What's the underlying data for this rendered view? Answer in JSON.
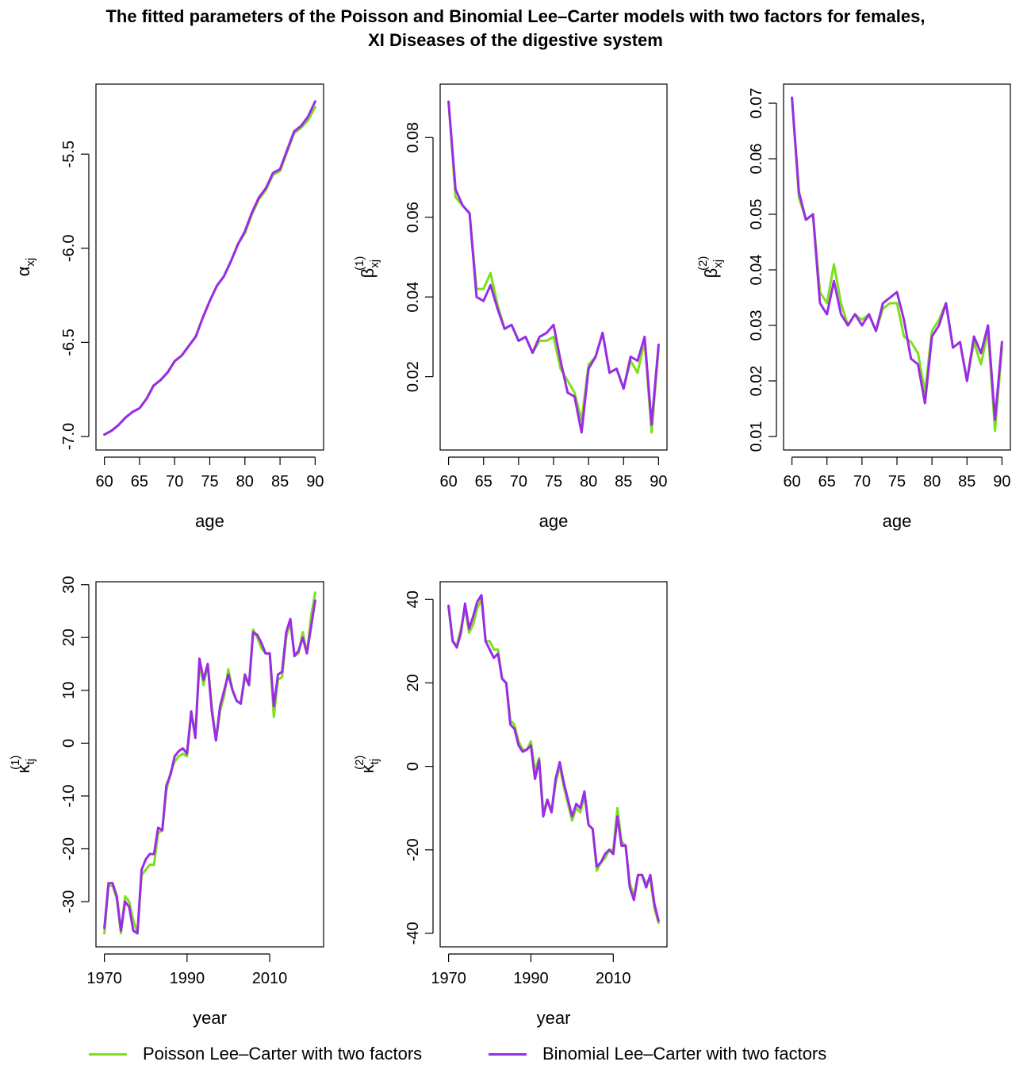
{
  "title_line1": "The fitted parameters of the Poisson and Binomial Lee–Carter models with two factors for females,",
  "title_line2": "XI Diseases of the digestive system",
  "colors": {
    "poisson": "#7CE01A",
    "binomial": "#9B2BE8"
  },
  "legend": [
    {
      "key": "poisson",
      "label": "Poisson Lee–Carter with two factors"
    },
    {
      "key": "binomial",
      "label": "Binomial Lee–Carter with two factors"
    }
  ],
  "chart_data": [
    {
      "id": "alpha",
      "type": "line",
      "xlabel": "age",
      "ylabel": "α_xj",
      "xlim": [
        60,
        90
      ],
      "ylim": [
        -7.0,
        -5.2
      ],
      "xticks": [
        60,
        65,
        70,
        75,
        80,
        85,
        90
      ],
      "yticks": [
        -7.0,
        -6.5,
        -6.0,
        -5.5
      ],
      "ytick_labels": [
        "-7.0",
        "-6.5",
        "-6.0",
        "-5.5"
      ],
      "x": [
        60,
        61,
        62,
        63,
        64,
        65,
        66,
        67,
        68,
        69,
        70,
        71,
        72,
        73,
        74,
        75,
        76,
        77,
        78,
        79,
        80,
        81,
        82,
        83,
        84,
        85,
        86,
        87,
        88,
        89,
        90
      ],
      "series": [
        {
          "name": "Poisson Lee–Carter with two factors",
          "key": "poisson",
          "values": [
            -6.99,
            -6.97,
            -6.94,
            -6.9,
            -6.87,
            -6.85,
            -6.8,
            -6.73,
            -6.7,
            -6.66,
            -6.6,
            -6.57,
            -6.52,
            -6.47,
            -6.37,
            -6.28,
            -6.2,
            -6.15,
            -6.07,
            -5.98,
            -5.92,
            -5.82,
            -5.74,
            -5.69,
            -5.61,
            -5.59,
            -5.49,
            -5.39,
            -5.36,
            -5.32,
            -5.25
          ]
        },
        {
          "name": "Binomial Lee–Carter with two factors",
          "key": "binomial",
          "values": [
            -6.99,
            -6.97,
            -6.94,
            -6.9,
            -6.87,
            -6.85,
            -6.8,
            -6.73,
            -6.7,
            -6.66,
            -6.6,
            -6.57,
            -6.52,
            -6.47,
            -6.37,
            -6.28,
            -6.2,
            -6.15,
            -6.07,
            -5.98,
            -5.91,
            -5.81,
            -5.73,
            -5.68,
            -5.6,
            -5.58,
            -5.48,
            -5.38,
            -5.35,
            -5.3,
            -5.22
          ]
        }
      ]
    },
    {
      "id": "beta1",
      "type": "line",
      "xlabel": "age",
      "ylabel": "β_xj^(1)",
      "xlim": [
        60,
        90
      ],
      "ylim": [
        0.005,
        0.09
      ],
      "xticks": [
        60,
        65,
        70,
        75,
        80,
        85,
        90
      ],
      "yticks": [
        0.02,
        0.04,
        0.06,
        0.08
      ],
      "ytick_labels": [
        "0.02",
        "0.04",
        "0.06",
        "0.08"
      ],
      "x": [
        60,
        61,
        62,
        63,
        64,
        65,
        66,
        67,
        68,
        69,
        70,
        71,
        72,
        73,
        74,
        75,
        76,
        77,
        78,
        79,
        80,
        81,
        82,
        83,
        84,
        85,
        86,
        87,
        88,
        89,
        90
      ],
      "series": [
        {
          "name": "Poisson Lee–Carter with two factors",
          "key": "poisson",
          "values": [
            0.089,
            0.065,
            0.063,
            0.061,
            0.042,
            0.042,
            0.046,
            0.038,
            0.032,
            0.033,
            0.029,
            0.03,
            0.026,
            0.029,
            0.029,
            0.03,
            0.022,
            0.019,
            0.016,
            0.009,
            0.023,
            0.025,
            0.031,
            0.021,
            0.022,
            0.017,
            0.024,
            0.021,
            0.029,
            0.006,
            0.027
          ]
        },
        {
          "name": "Binomial Lee–Carter with two factors",
          "key": "binomial",
          "values": [
            0.089,
            0.067,
            0.063,
            0.061,
            0.04,
            0.039,
            0.043,
            0.037,
            0.032,
            0.033,
            0.029,
            0.03,
            0.026,
            0.03,
            0.031,
            0.033,
            0.024,
            0.016,
            0.015,
            0.006,
            0.022,
            0.025,
            0.031,
            0.021,
            0.022,
            0.017,
            0.025,
            0.024,
            0.03,
            0.008,
            0.028
          ]
        }
      ]
    },
    {
      "id": "beta2",
      "type": "line",
      "xlabel": "age",
      "ylabel": "β_xj^(2)",
      "xlim": [
        60,
        90
      ],
      "ylim": [
        0.01,
        0.071
      ],
      "xticks": [
        60,
        65,
        70,
        75,
        80,
        85,
        90
      ],
      "yticks": [
        0.01,
        0.02,
        0.03,
        0.04,
        0.05,
        0.06,
        0.07
      ],
      "ytick_labels": [
        "0.01",
        "0.02",
        "0.03",
        "0.04",
        "0.05",
        "0.06",
        "0.07"
      ],
      "x": [
        60,
        61,
        62,
        63,
        64,
        65,
        66,
        67,
        68,
        69,
        70,
        71,
        72,
        73,
        74,
        75,
        76,
        77,
        78,
        79,
        80,
        81,
        82,
        83,
        84,
        85,
        86,
        87,
        88,
        89,
        90
      ],
      "series": [
        {
          "name": "Poisson Lee–Carter with two factors",
          "key": "poisson",
          "values": [
            0.071,
            0.053,
            0.049,
            0.05,
            0.036,
            0.034,
            0.041,
            0.034,
            0.03,
            0.032,
            0.031,
            0.032,
            0.029,
            0.033,
            0.034,
            0.034,
            0.028,
            0.027,
            0.025,
            0.018,
            0.029,
            0.031,
            0.034,
            0.026,
            0.027,
            0.02,
            0.027,
            0.023,
            0.029,
            0.011,
            0.026
          ]
        },
        {
          "name": "Binomial Lee–Carter with two factors",
          "key": "binomial",
          "values": [
            0.071,
            0.054,
            0.049,
            0.05,
            0.034,
            0.032,
            0.038,
            0.032,
            0.03,
            0.032,
            0.03,
            0.032,
            0.029,
            0.034,
            0.035,
            0.036,
            0.031,
            0.024,
            0.023,
            0.016,
            0.028,
            0.03,
            0.034,
            0.026,
            0.027,
            0.02,
            0.028,
            0.025,
            0.03,
            0.013,
            0.027
          ]
        }
      ]
    },
    {
      "id": "kappa1",
      "type": "line",
      "xlabel": "year",
      "ylabel": "κ_tj^(1)",
      "xlim": [
        1970,
        2021
      ],
      "ylim": [
        -36,
        28
      ],
      "xticks": [
        1970,
        1990,
        2010
      ],
      "yticks": [
        -30,
        -20,
        -10,
        0,
        10,
        20,
        30
      ],
      "ytick_labels": [
        "-30",
        "-20",
        "-10",
        "0",
        "10",
        "20",
        "30"
      ],
      "x": [
        1970,
        1971,
        1972,
        1973,
        1974,
        1975,
        1976,
        1977,
        1978,
        1979,
        1980,
        1981,
        1982,
        1983,
        1984,
        1985,
        1986,
        1987,
        1988,
        1989,
        1990,
        1991,
        1992,
        1993,
        1994,
        1995,
        1996,
        1997,
        1998,
        1999,
        2000,
        2001,
        2002,
        2003,
        2004,
        2005,
        2006,
        2007,
        2008,
        2009,
        2010,
        2011,
        2012,
        2013,
        2014,
        2015,
        2016,
        2017,
        2018,
        2019,
        2020,
        2021
      ],
      "series": [
        {
          "name": "Poisson Lee–Carter with two factors",
          "key": "poisson",
          "values": [
            -36,
            -27,
            -27,
            -29.5,
            -36,
            -29,
            -30,
            -33.5,
            -36,
            -25,
            -24,
            -23,
            -23,
            -17,
            -16.5,
            -9,
            -5.5,
            -3.5,
            -2.5,
            -2,
            -2.5,
            5.5,
            2,
            15,
            11,
            15,
            7,
            0.5,
            6,
            9,
            14,
            10,
            8,
            7.5,
            12.5,
            11,
            21.5,
            20,
            18,
            17,
            17,
            5,
            12,
            12.5,
            20,
            23,
            16.5,
            17,
            21,
            17,
            24,
            28.5
          ]
        },
        {
          "name": "Binomial Lee–Carter with two factors",
          "key": "binomial",
          "values": [
            -35,
            -26.5,
            -26.5,
            -29,
            -35.5,
            -30,
            -31,
            -35.5,
            -36,
            -24,
            -22,
            -21,
            -21,
            -16,
            -16.5,
            -8,
            -6,
            -2.5,
            -1.5,
            -1,
            -2,
            6,
            1,
            16,
            12,
            15,
            6,
            0.5,
            7,
            10,
            13,
            10,
            8,
            7.5,
            13,
            11,
            21,
            20.5,
            19,
            17,
            17,
            7,
            13,
            13.5,
            21,
            23.5,
            16.5,
            17.5,
            20,
            17,
            22,
            27
          ]
        }
      ]
    },
    {
      "id": "kappa2",
      "type": "line",
      "xlabel": "year",
      "ylabel": "κ_tj^(2)",
      "xlim": [
        1970,
        2021
      ],
      "ylim": [
        -40,
        41
      ],
      "xticks": [
        1970,
        1990,
        2010
      ],
      "yticks": [
        -40,
        -20,
        0,
        20,
        40
      ],
      "ytick_labels": [
        "-40",
        "-20",
        "0",
        "20",
        "40"
      ],
      "x": [
        1970,
        1971,
        1972,
        1973,
        1974,
        1975,
        1976,
        1977,
        1978,
        1979,
        1980,
        1981,
        1982,
        1983,
        1984,
        1985,
        1986,
        1987,
        1988,
        1989,
        1990,
        1991,
        1992,
        1993,
        1994,
        1995,
        1996,
        1997,
        1998,
        1999,
        2000,
        2001,
        2002,
        2003,
        2004,
        2005,
        2006,
        2007,
        2008,
        2009,
        2010,
        2011,
        2012,
        2013,
        2014,
        2015,
        2016,
        2017,
        2018,
        2019,
        2020,
        2021
      ],
      "series": [
        {
          "name": "Poisson Lee–Carter with two factors",
          "key": "poisson",
          "values": [
            38,
            30,
            29,
            33,
            38,
            32,
            34,
            38,
            40,
            30,
            30,
            28,
            28,
            21,
            20,
            11,
            10,
            6,
            4,
            4,
            6,
            -1,
            2,
            -11,
            -8,
            -11,
            -4,
            0,
            -5,
            -9,
            -13,
            -10,
            -11,
            -7,
            -14,
            -15,
            -25,
            -23,
            -22,
            -20,
            -20,
            -10,
            -18,
            -19,
            -28,
            -31,
            -26,
            -26,
            -28,
            -27,
            -34,
            -37.5
          ]
        },
        {
          "name": "Binomial Lee–Carter with two factors",
          "key": "binomial",
          "values": [
            38.5,
            30,
            28.5,
            32,
            39,
            33,
            36,
            39.5,
            41,
            30,
            28,
            26,
            27,
            21,
            20,
            10,
            9,
            5,
            3.5,
            4,
            5,
            -3,
            1.5,
            -12,
            -8,
            -11,
            -3,
            1,
            -4,
            -8,
            -12,
            -9,
            -10,
            -6,
            -14,
            -15,
            -24,
            -23,
            -21,
            -20,
            -21,
            -12,
            -19,
            -19,
            -29,
            -32,
            -26,
            -26,
            -29,
            -26,
            -33,
            -37
          ]
        }
      ]
    }
  ]
}
